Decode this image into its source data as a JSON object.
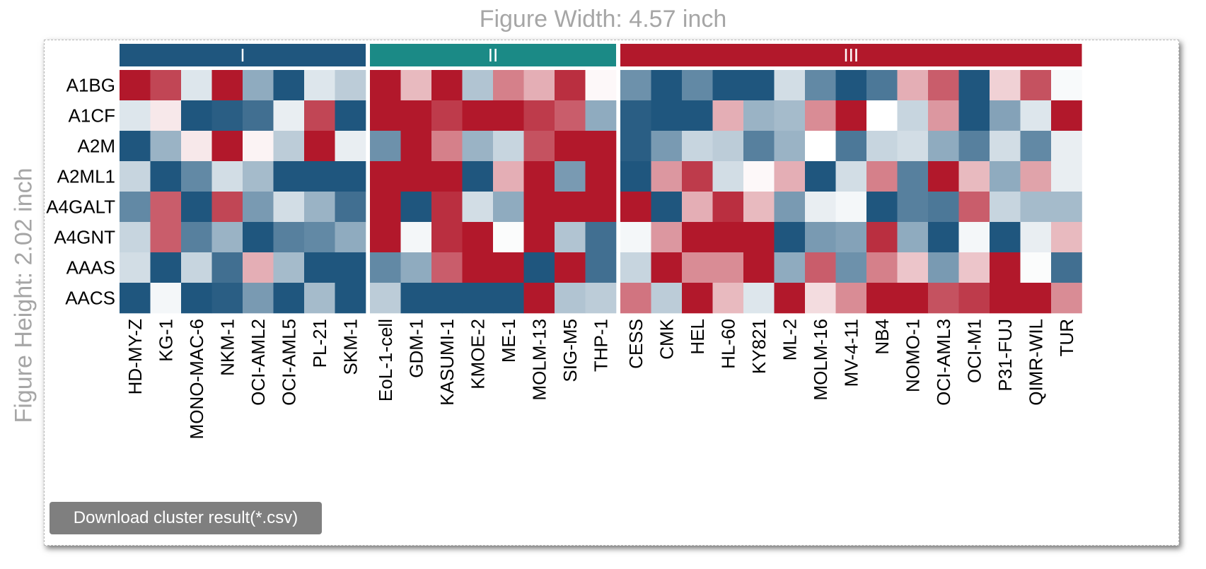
{
  "figure_width_label": "Figure Width: 4.57 inch",
  "figure_height_label": "Figure Height: 2.02 inch",
  "download_button_label": "Download cluster result(*.csv)",
  "colors": {
    "high": "#b2182b",
    "low": "#1f567e",
    "mid": "#ffffff",
    "cluster_I": "#1f567e",
    "cluster_II": "#1b8a86",
    "cluster_III": "#b2182b"
  },
  "chart_data": {
    "type": "heatmap",
    "rows": [
      "A1BG",
      "A1CF",
      "A2M",
      "A2ML1",
      "A4GALT",
      "A4GNT",
      "AAAS",
      "AACS"
    ],
    "value_range": [
      -1,
      1
    ],
    "clusters": [
      {
        "label": "I",
        "columns": [
          "HD-MY-Z",
          "KG-1",
          "MONO-MAC-6",
          "NKM-1",
          "OCI-AML2",
          "OCI-AML5",
          "PL-21",
          "SKM-1"
        ],
        "values": [
          [
            1.0,
            0.8,
            -0.15,
            1.0,
            -0.5,
            -1.0,
            -0.15,
            -0.3
          ],
          [
            -0.15,
            0.1,
            -1.0,
            -0.95,
            -0.85,
            -0.1,
            0.8,
            -1.0
          ],
          [
            -1.0,
            -0.45,
            0.1,
            1.0,
            0.05,
            -0.3,
            1.0,
            -0.1
          ],
          [
            -0.25,
            -1.0,
            -0.7,
            -0.2,
            -0.4,
            -1.0,
            -1.0,
            -1.0
          ],
          [
            -0.7,
            0.7,
            -1.0,
            0.8,
            -0.6,
            -0.2,
            -0.45,
            -0.85
          ],
          [
            -0.25,
            0.7,
            -0.75,
            -0.45,
            -1.0,
            -0.75,
            -0.7,
            -0.5
          ],
          [
            -0.2,
            -1.0,
            -0.25,
            -0.85,
            0.35,
            -0.4,
            -1.0,
            -1.0
          ],
          [
            -1.0,
            -0.05,
            -1.0,
            -0.95,
            -0.6,
            -1.0,
            -0.4,
            -1.0
          ]
        ]
      },
      {
        "label": "II",
        "columns": [
          "EoL-1-cell",
          "GDM-1",
          "KASUMI-1",
          "KMOE-2",
          "ME-1",
          "MOLM-13",
          "SIG-M5",
          "THP-1"
        ],
        "values": [
          [
            1.0,
            0.3,
            1.0,
            -0.35,
            0.55,
            0.35,
            0.9,
            0.03
          ],
          [
            1.0,
            1.0,
            0.85,
            1.0,
            1.0,
            0.85,
            0.7,
            -0.5
          ],
          [
            -0.65,
            1.0,
            0.55,
            -0.45,
            -0.25,
            0.75,
            1.0,
            1.0
          ],
          [
            1.0,
            1.0,
            1.0,
            -1.0,
            0.35,
            1.0,
            -0.6,
            1.0
          ],
          [
            1.0,
            -1.0,
            0.9,
            -0.2,
            -0.5,
            1.0,
            1.0,
            1.0
          ],
          [
            1.0,
            -0.05,
            0.9,
            1.0,
            -0.02,
            1.0,
            -0.35,
            -0.85
          ],
          [
            -0.7,
            -0.5,
            0.7,
            1.0,
            1.0,
            -1.0,
            1.0,
            -0.85
          ],
          [
            -0.3,
            -1.0,
            -1.0,
            -1.0,
            -1.0,
            1.0,
            -0.35,
            -0.3
          ]
        ]
      },
      {
        "label": "III",
        "columns": [
          "CESS",
          "CMK",
          "HEL",
          "HL-60",
          "KY821",
          "ML-2",
          "MOLM-16",
          "MV-4-11",
          "NB4",
          "NOMO-1",
          "OCI-AML3",
          "OCI-M1",
          "P31-FUJ",
          "QIMR-WIL",
          "TUR"
        ],
        "values": [
          [
            -0.65,
            -1.0,
            -0.7,
            -1.0,
            -1.0,
            -0.2,
            -0.7,
            -1.0,
            -0.8,
            0.35,
            0.7,
            -1.0,
            0.2,
            0.75,
            -0.03
          ],
          [
            -0.95,
            -1.0,
            -1.0,
            0.35,
            -0.45,
            -0.4,
            0.5,
            1.0,
            0.0,
            -0.25,
            0.45,
            -1.0,
            -0.55,
            -0.15,
            1.0
          ],
          [
            -0.95,
            -0.6,
            -0.25,
            -0.3,
            -0.75,
            -0.45,
            0.0,
            -0.8,
            -0.25,
            -0.2,
            -0.5,
            -0.75,
            -0.2,
            -0.7,
            -0.1
          ],
          [
            -1.0,
            0.45,
            0.85,
            -0.2,
            0.03,
            0.35,
            -1.0,
            -0.2,
            0.55,
            -0.75,
            1.0,
            0.3,
            -0.5,
            0.4,
            -0.1
          ],
          [
            1.0,
            -1.0,
            0.35,
            0.9,
            0.3,
            -0.6,
            -0.1,
            -0.05,
            -1.0,
            -0.75,
            -0.8,
            0.7,
            -0.25,
            -0.4,
            -0.4
          ],
          [
            -0.05,
            0.45,
            1.0,
            1.0,
            1.0,
            -1.0,
            -0.6,
            -0.55,
            0.9,
            -0.5,
            -1.0,
            -0.05,
            -1.0,
            -0.1,
            0.3
          ],
          [
            -0.25,
            1.0,
            0.5,
            0.5,
            1.0,
            -0.5,
            0.7,
            -0.65,
            0.55,
            0.25,
            -0.6,
            0.25,
            1.0,
            -0.02,
            -0.85
          ],
          [
            0.6,
            -0.3,
            1.0,
            0.3,
            -0.15,
            1.0,
            0.15,
            0.5,
            1.0,
            1.0,
            0.75,
            0.85,
            1.0,
            1.0,
            0.5
          ]
        ]
      }
    ]
  }
}
